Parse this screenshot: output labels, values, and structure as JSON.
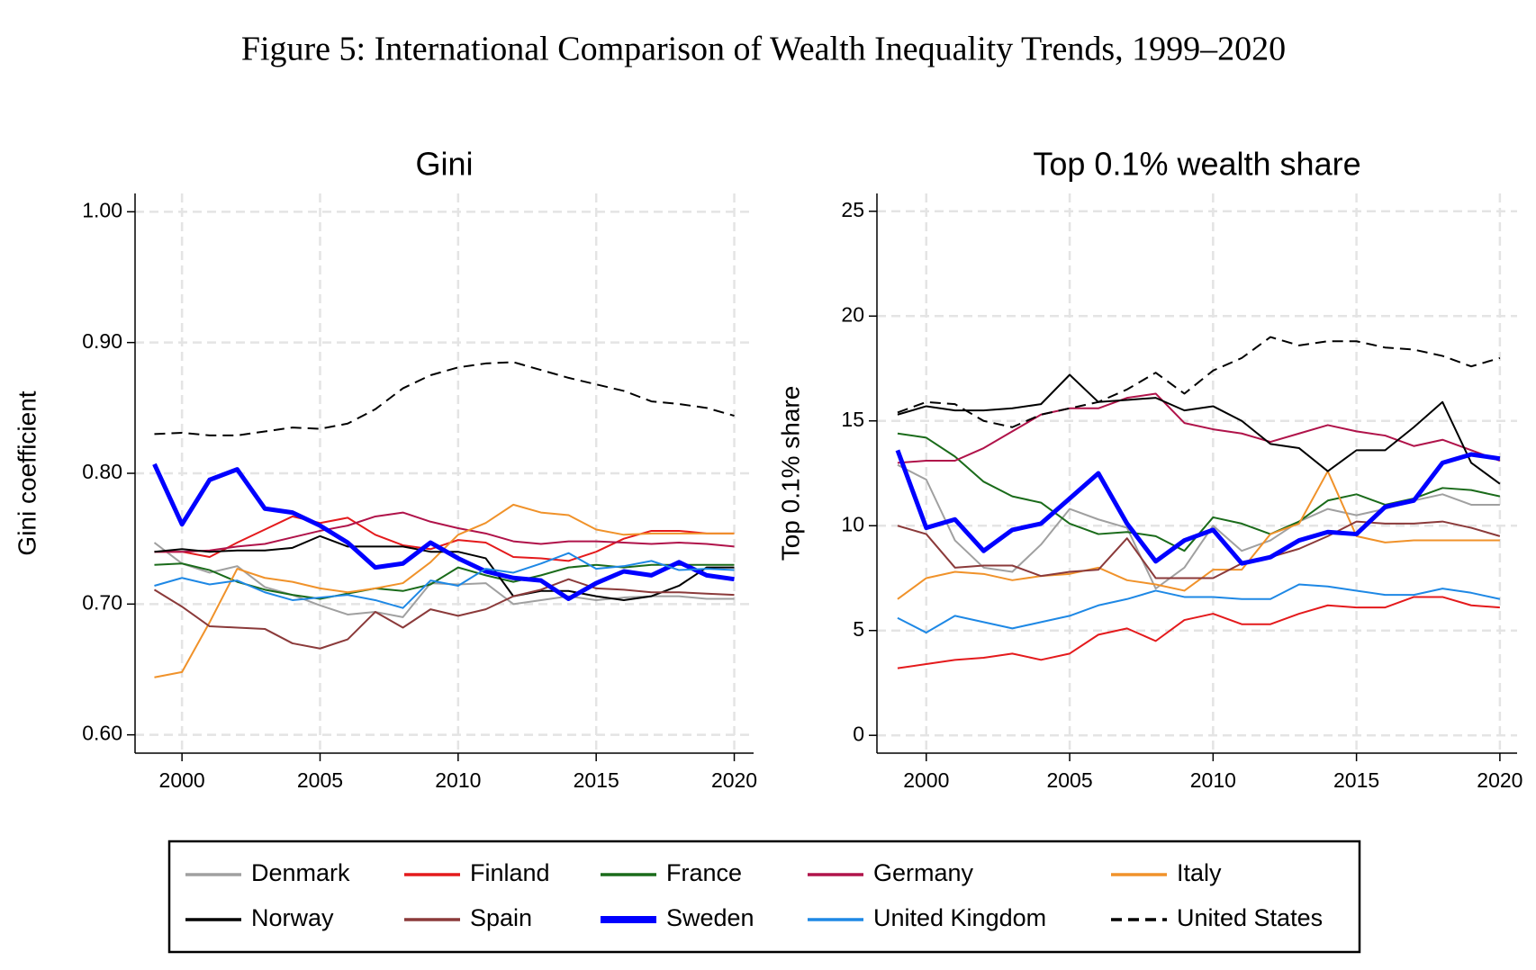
{
  "title": "Figure 5: International Comparison of Wealth Inequality Trends, 1999–2020",
  "chart_data": [
    {
      "type": "line",
      "title": "Gini",
      "ylabel": "Gini coefficient",
      "grid": true,
      "x": [
        1999,
        2000,
        2001,
        2002,
        2003,
        2004,
        2005,
        2006,
        2007,
        2008,
        2009,
        2010,
        2011,
        2012,
        2013,
        2014,
        2015,
        2016,
        2017,
        2018,
        2019,
        2020
      ],
      "xlim": [
        1998.3,
        2020.7
      ],
      "xticks": [
        2000,
        2005,
        2010,
        2015,
        2020
      ],
      "ylim": [
        0.586,
        1.014
      ],
      "yticks": [
        {
          "value": 0.6,
          "label": "0.60"
        },
        {
          "value": 0.7,
          "label": "0.70"
        },
        {
          "value": 0.8,
          "label": "0.80"
        },
        {
          "value": 0.9,
          "label": "0.90"
        },
        {
          "value": 1.0,
          "label": "1.00"
        }
      ],
      "series": [
        {
          "name": "Denmark",
          "color": "#a0a0a0",
          "values": [
            0.747,
            0.731,
            0.724,
            0.729,
            0.713,
            0.707,
            0.699,
            0.692,
            0.694,
            0.69,
            0.716,
            0.715,
            0.716,
            0.7,
            0.703,
            0.706,
            0.703,
            0.705,
            0.706,
            0.706,
            0.704,
            0.704
          ]
        },
        {
          "name": "Finland",
          "color": "#e41a1c",
          "values": [
            0.74,
            0.74,
            0.736,
            0.747,
            0.757,
            0.767,
            0.762,
            0.766,
            0.753,
            0.745,
            0.742,
            0.749,
            0.747,
            0.736,
            0.735,
            0.733,
            0.74,
            0.75,
            0.756,
            0.756,
            0.754,
            0.754
          ]
        },
        {
          "name": "France",
          "color": "#1a6b1a",
          "values": [
            0.73,
            0.731,
            0.726,
            0.717,
            0.711,
            0.707,
            0.704,
            0.708,
            0.712,
            0.71,
            0.715,
            0.728,
            0.722,
            0.717,
            0.722,
            0.728,
            0.73,
            0.728,
            0.73,
            0.73,
            0.73,
            0.73
          ]
        },
        {
          "name": "Germany",
          "color": "#b0134a",
          "values": [
            0.74,
            0.74,
            0.741,
            0.744,
            0.746,
            0.751,
            0.756,
            0.76,
            0.767,
            0.77,
            0.763,
            0.758,
            0.754,
            0.748,
            0.746,
            0.748,
            0.748,
            0.747,
            0.746,
            0.747,
            0.746,
            0.744
          ]
        },
        {
          "name": "Italy",
          "color": "#f0922a",
          "values": [
            0.644,
            0.648,
            0.686,
            0.727,
            0.72,
            0.717,
            0.712,
            0.709,
            0.712,
            0.716,
            0.732,
            0.753,
            0.762,
            0.776,
            0.77,
            0.768,
            0.757,
            0.753,
            0.754,
            0.754,
            0.754,
            0.754
          ]
        },
        {
          "name": "Norway",
          "color": "#000000",
          "values": [
            0.74,
            0.742,
            0.74,
            0.741,
            0.741,
            0.743,
            0.752,
            0.744,
            0.744,
            0.744,
            0.74,
            0.74,
            0.735,
            0.706,
            0.71,
            0.71,
            0.706,
            0.703,
            0.706,
            0.714,
            0.728,
            0.728
          ]
        },
        {
          "name": "Spain",
          "color": "#8b3a3a",
          "values": [
            0.711,
            0.698,
            0.683,
            0.682,
            0.681,
            0.67,
            0.666,
            0.673,
            0.694,
            0.682,
            0.696,
            0.691,
            0.696,
            0.706,
            0.711,
            0.719,
            0.712,
            0.711,
            0.709,
            0.709,
            0.708,
            0.707
          ]
        },
        {
          "name": "Sweden",
          "color": "#0000ff",
          "linewidth": 5,
          "values": [
            0.807,
            0.761,
            0.795,
            0.803,
            0.773,
            0.77,
            0.76,
            0.747,
            0.728,
            0.731,
            0.747,
            0.735,
            0.725,
            0.72,
            0.718,
            0.704,
            0.716,
            0.725,
            0.722,
            0.732,
            0.722,
            0.719
          ]
        },
        {
          "name": "United Kingdom",
          "color": "#1e88e5",
          "values": [
            0.714,
            0.72,
            0.715,
            0.718,
            0.709,
            0.703,
            0.705,
            0.707,
            0.703,
            0.697,
            0.718,
            0.714,
            0.727,
            0.724,
            0.731,
            0.739,
            0.727,
            0.729,
            0.733,
            0.726,
            0.727,
            0.726
          ]
        },
        {
          "name": "United States",
          "color": "#000000",
          "linestyle": "dashed",
          "values": [
            0.83,
            0.831,
            0.829,
            0.829,
            0.832,
            0.835,
            0.834,
            0.838,
            0.849,
            0.865,
            0.875,
            0.881,
            0.884,
            0.885,
            0.879,
            0.873,
            0.868,
            0.863,
            0.855,
            0.853,
            0.85,
            0.844
          ]
        }
      ]
    },
    {
      "type": "line",
      "title": "Top 0.1% wealth share",
      "ylabel": "Top 0.1% share",
      "grid": true,
      "x": [
        1999,
        2000,
        2001,
        2002,
        2003,
        2004,
        2005,
        2006,
        2007,
        2008,
        2009,
        2010,
        2011,
        2012,
        2013,
        2014,
        2015,
        2016,
        2017,
        2018,
        2019,
        2020
      ],
      "xlim": [
        1998.28,
        2020.6
      ],
      "xticks": [
        2000,
        2005,
        2010,
        2015,
        2020
      ],
      "ylim": [
        -0.85,
        25.85
      ],
      "yticks": [
        0,
        5,
        10,
        15,
        20,
        25
      ],
      "series": [
        {
          "name": "Denmark",
          "color": "#a0a0a0",
          "values": [
            12.9,
            12.2,
            9.3,
            8.0,
            7.8,
            9.1,
            10.8,
            10.3,
            9.9,
            7.0,
            8.0,
            10.0,
            8.8,
            9.3,
            10.2,
            10.8,
            10.5,
            10.8,
            11.2,
            11.5,
            11.0,
            11.0
          ]
        },
        {
          "name": "Finland",
          "color": "#e41a1c",
          "values": [
            3.2,
            3.4,
            3.6,
            3.7,
            3.9,
            3.6,
            3.9,
            4.8,
            5.1,
            4.5,
            5.5,
            5.8,
            5.3,
            5.3,
            5.8,
            6.2,
            6.1,
            6.1,
            6.6,
            6.6,
            6.2,
            6.1
          ]
        },
        {
          "name": "France",
          "color": "#1a6b1a",
          "values": [
            14.4,
            14.2,
            13.3,
            12.1,
            11.4,
            11.1,
            10.1,
            9.6,
            9.7,
            9.5,
            8.8,
            10.4,
            10.1,
            9.6,
            10.2,
            11.2,
            11.5,
            11.0,
            11.3,
            11.8,
            11.7,
            11.4
          ]
        },
        {
          "name": "Germany",
          "color": "#b0134a",
          "values": [
            13.0,
            13.1,
            13.1,
            13.7,
            14.5,
            15.3,
            15.6,
            15.6,
            16.1,
            16.3,
            14.9,
            14.6,
            14.4,
            14.0,
            14.4,
            14.8,
            14.5,
            14.3,
            13.8,
            14.1,
            13.6,
            13.1
          ]
        },
        {
          "name": "Italy",
          "color": "#f0922a",
          "values": [
            6.5,
            7.5,
            7.8,
            7.7,
            7.4,
            7.6,
            7.7,
            8.0,
            7.4,
            7.2,
            6.9,
            7.9,
            7.9,
            9.6,
            10.1,
            12.6,
            9.5,
            9.2,
            9.3,
            9.3,
            9.3,
            9.3
          ]
        },
        {
          "name": "Norway",
          "color": "#000000",
          "values": [
            15.3,
            15.7,
            15.5,
            15.5,
            15.6,
            15.8,
            17.2,
            15.9,
            16.0,
            16.1,
            15.5,
            15.7,
            15.0,
            13.9,
            13.7,
            12.6,
            13.6,
            13.6,
            14.7,
            15.9,
            13.0,
            12.0
          ]
        },
        {
          "name": "Spain",
          "color": "#8b3a3a",
          "values": [
            10.0,
            9.6,
            8.0,
            8.1,
            8.1,
            7.6,
            7.8,
            7.9,
            9.4,
            7.5,
            7.5,
            7.5,
            8.2,
            8.5,
            8.9,
            9.5,
            10.2,
            10.1,
            10.1,
            10.2,
            9.9,
            9.5
          ]
        },
        {
          "name": "Sweden",
          "color": "#0000ff",
          "linewidth": 5,
          "values": [
            13.6,
            9.9,
            10.3,
            8.8,
            9.8,
            10.1,
            11.3,
            12.5,
            10.1,
            8.3,
            9.3,
            9.8,
            8.2,
            8.5,
            9.3,
            9.7,
            9.6,
            10.9,
            11.2,
            13.0,
            13.4,
            13.2
          ]
        },
        {
          "name": "United Kingdom",
          "color": "#1e88e5",
          "values": [
            5.6,
            4.9,
            5.7,
            5.4,
            5.1,
            5.4,
            5.7,
            6.2,
            6.5,
            6.9,
            6.6,
            6.6,
            6.5,
            6.5,
            7.2,
            7.1,
            6.9,
            6.7,
            6.7,
            7.0,
            6.8,
            6.5
          ]
        },
        {
          "name": "United States",
          "color": "#000000",
          "linestyle": "dashed",
          "values": [
            15.4,
            15.9,
            15.8,
            15.0,
            14.7,
            15.3,
            15.6,
            15.9,
            16.5,
            17.3,
            16.3,
            17.4,
            18.0,
            19.0,
            18.6,
            18.8,
            18.8,
            18.5,
            18.4,
            18.1,
            17.6,
            18.0
          ]
        }
      ]
    }
  ]
}
